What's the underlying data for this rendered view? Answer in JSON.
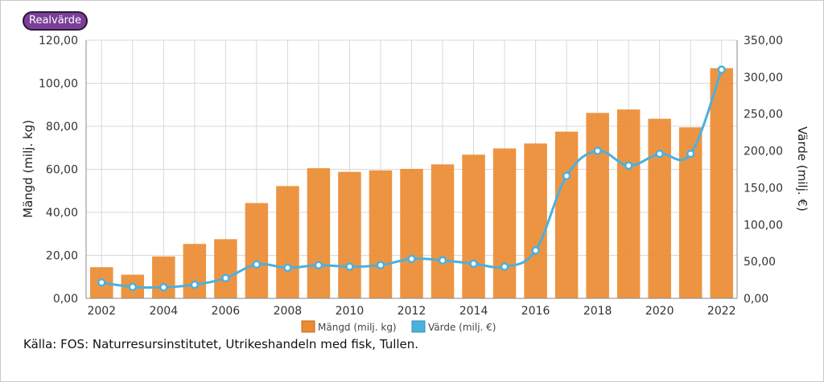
{
  "toggle": {
    "label": "Realvärde"
  },
  "source": "Källa: FOS: Naturresursinstitutet, Utrikeshandeln med fisk, Tullen.",
  "colors": {
    "bar": "#ec8b32",
    "line": "#4cb0dd",
    "grid": "#d9d9d9",
    "button": "#7b3f98"
  },
  "chart_data": {
    "type": "bar",
    "x": [
      2002,
      2003,
      2004,
      2005,
      2006,
      2007,
      2008,
      2009,
      2010,
      2011,
      2012,
      2013,
      2014,
      2015,
      2016,
      2017,
      2018,
      2019,
      2020,
      2021,
      2022
    ],
    "x_ticks": [
      "2002",
      "2004",
      "2006",
      "2008",
      "2010",
      "2012",
      "2014",
      "2016",
      "2018",
      "2020",
      "2022"
    ],
    "ylabel_left": "Mängd (milj. kg)",
    "ylabel_right": "Värde (milj. €)",
    "ylim_left": [
      0,
      120
    ],
    "ylim_right": [
      0,
      350
    ],
    "y_ticks_left": [
      "0,00",
      "20,00",
      "40,00",
      "60,00",
      "80,00",
      "100,00",
      "120,00"
    ],
    "y_ticks_right": [
      "0,00",
      "50,00",
      "100,00",
      "150,00",
      "200,00",
      "250,00",
      "300,00",
      "350,00"
    ],
    "grid": true,
    "legend_position": "bottom",
    "series": [
      {
        "name": "Mängd (milj. kg)",
        "type": "bar",
        "axis": "left",
        "values": [
          14.5,
          11.0,
          19.5,
          25.3,
          27.5,
          44.3,
          52.2,
          60.5,
          58.8,
          59.5,
          60.2,
          62.3,
          66.8,
          69.7,
          72.0,
          77.5,
          86.2,
          87.8,
          83.5,
          79.5,
          107.0
        ]
      },
      {
        "name": "Värde (milj. €)",
        "type": "line",
        "axis": "right",
        "values": [
          21.5,
          15.5,
          15.0,
          18.5,
          27.5,
          46.0,
          41.5,
          45.0,
          43.0,
          45.0,
          53.5,
          51.5,
          47.0,
          43.0,
          65.0,
          166.0,
          200.0,
          180.0,
          196.0,
          196.0,
          310.0
        ]
      }
    ]
  }
}
